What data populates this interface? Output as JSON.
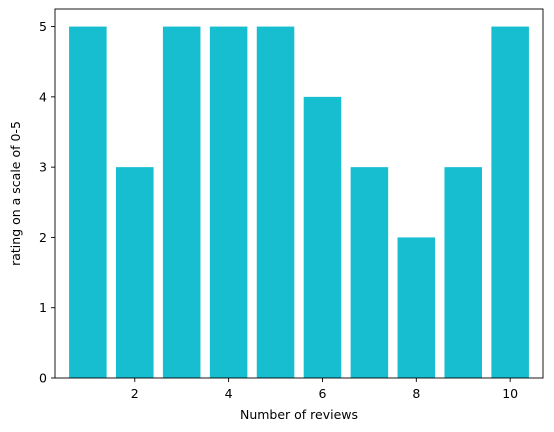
{
  "chart_data": {
    "type": "bar",
    "x": [
      1,
      2,
      3,
      4,
      5,
      6,
      7,
      8,
      9,
      10
    ],
    "values": [
      5,
      3,
      5,
      5,
      5,
      4,
      3,
      2,
      3,
      5
    ],
    "xlabel": "Number of reviews",
    "ylabel": "rating on a scale of 0-5",
    "xlim": [
      0.3,
      10.7
    ],
    "ylim": [
      0,
      5.25
    ],
    "xticks": [
      2,
      4,
      6,
      8,
      10
    ],
    "yticks": [
      0,
      1,
      2,
      3,
      4,
      5
    ],
    "bar_color": "#17becf",
    "grid": false
  }
}
